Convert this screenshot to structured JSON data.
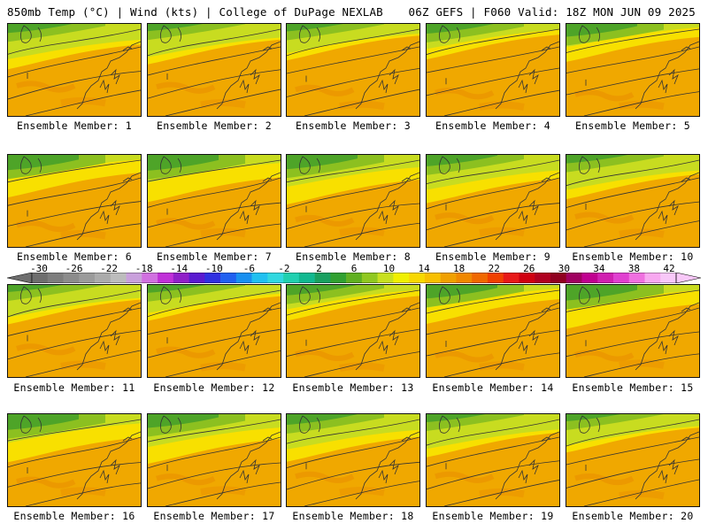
{
  "header": {
    "title_left": "850mb Temp (°C) | Wind (kts) | College of DuPage NEXLAB",
    "title_right": "06Z GEFS | F060 Valid: 18Z MON JUN 09 2025"
  },
  "panels": [
    {
      "label": "Ensemble Member: 1"
    },
    {
      "label": "Ensemble Member: 2"
    },
    {
      "label": "Ensemble Member: 3"
    },
    {
      "label": "Ensemble Member: 4"
    },
    {
      "label": "Ensemble Member: 5"
    },
    {
      "label": "Ensemble Member: 6"
    },
    {
      "label": "Ensemble Member: 7"
    },
    {
      "label": "Ensemble Member: 8"
    },
    {
      "label": "Ensemble Member: 9"
    },
    {
      "label": "Ensemble Member: 10"
    },
    {
      "label": "Ensemble Member: 11"
    },
    {
      "label": "Ensemble Member: 12"
    },
    {
      "label": "Ensemble Member: 13"
    },
    {
      "label": "Ensemble Member: 14"
    },
    {
      "label": "Ensemble Member: 15"
    },
    {
      "label": "Ensemble Member: 16"
    },
    {
      "label": "Ensemble Member: 17"
    },
    {
      "label": "Ensemble Member: 18"
    },
    {
      "label": "Ensemble Member: 19"
    },
    {
      "label": "Ensemble Member: 20"
    }
  ],
  "colorbar": {
    "ticks": [
      "-30",
      "-26",
      "-22",
      "-18",
      "-14",
      "-10",
      "-6",
      "-2",
      "2",
      "6",
      "10",
      "14",
      "18",
      "22",
      "26",
      "30",
      "34",
      "38",
      "42"
    ],
    "colors": [
      "#6e6e6e",
      "#7d7d7d",
      "#8c8c8c",
      "#9b9b9b",
      "#ababab",
      "#bcbcbc",
      "#c9a0dc",
      "#d070e0",
      "#c030d8",
      "#9020c8",
      "#5a1ad0",
      "#3030e0",
      "#2060f0",
      "#1890f0",
      "#20c0f0",
      "#30d8e0",
      "#20d0b0",
      "#10b890",
      "#18a060",
      "#30a030",
      "#60b020",
      "#90c820",
      "#c8e020",
      "#f0f000",
      "#f8d800",
      "#f8c000",
      "#f0a000",
      "#f08800",
      "#f06800",
      "#f04000",
      "#e81818",
      "#d00010",
      "#b00020",
      "#900020",
      "#a00060",
      "#c00090",
      "#d020b0",
      "#e040d0",
      "#f070e0",
      "#f8a8f0",
      "#f8c8f8"
    ]
  }
}
